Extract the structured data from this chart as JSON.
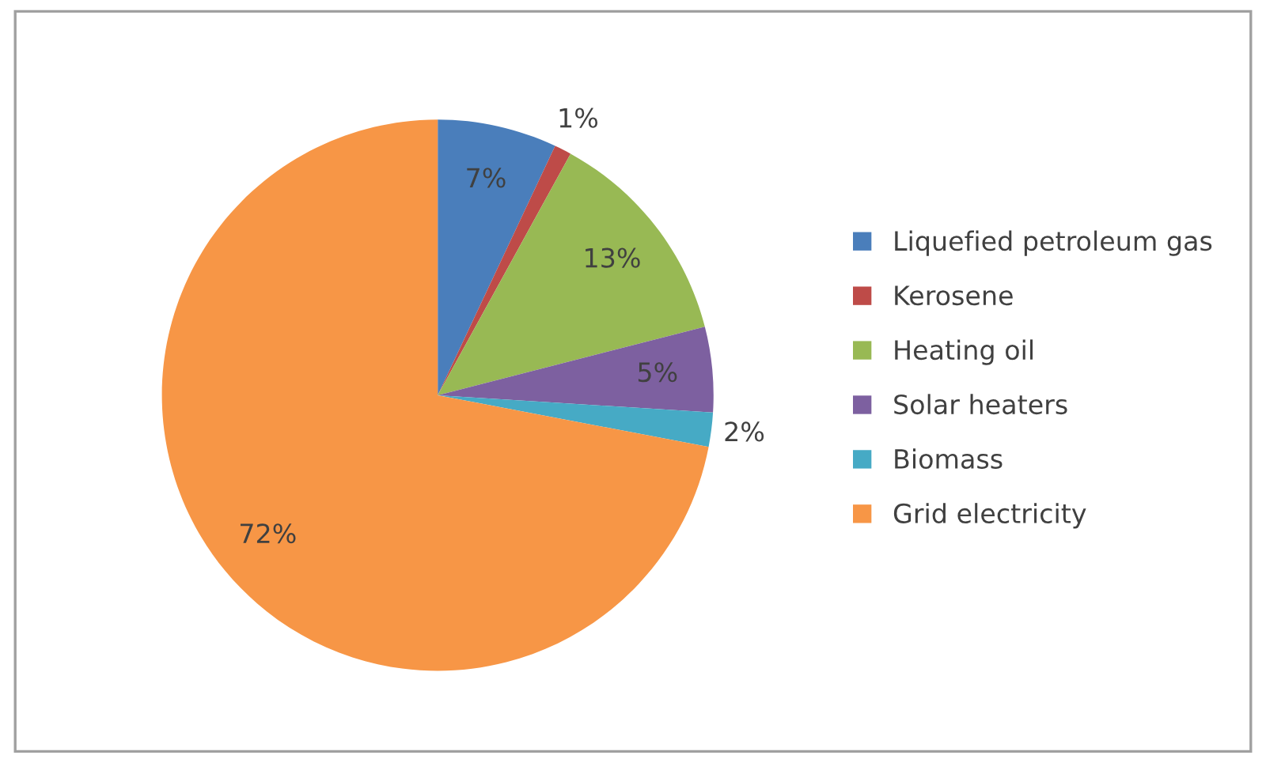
{
  "chart_data": {
    "type": "pie",
    "categories": [
      "Liquefied petroleum gas",
      "Kerosene",
      "Heating oil",
      "Solar heaters",
      "Biomass",
      "Grid electricity"
    ],
    "values": [
      7,
      1,
      13,
      5,
      2,
      72
    ],
    "colors": [
      "#4a7ebb",
      "#be4b48",
      "#98b954",
      "#7d60a0",
      "#46aac5",
      "#f79646"
    ],
    "value_labels": [
      "7%",
      "1%",
      "13%",
      "5%",
      "2%",
      "72%"
    ],
    "legend": "right"
  }
}
